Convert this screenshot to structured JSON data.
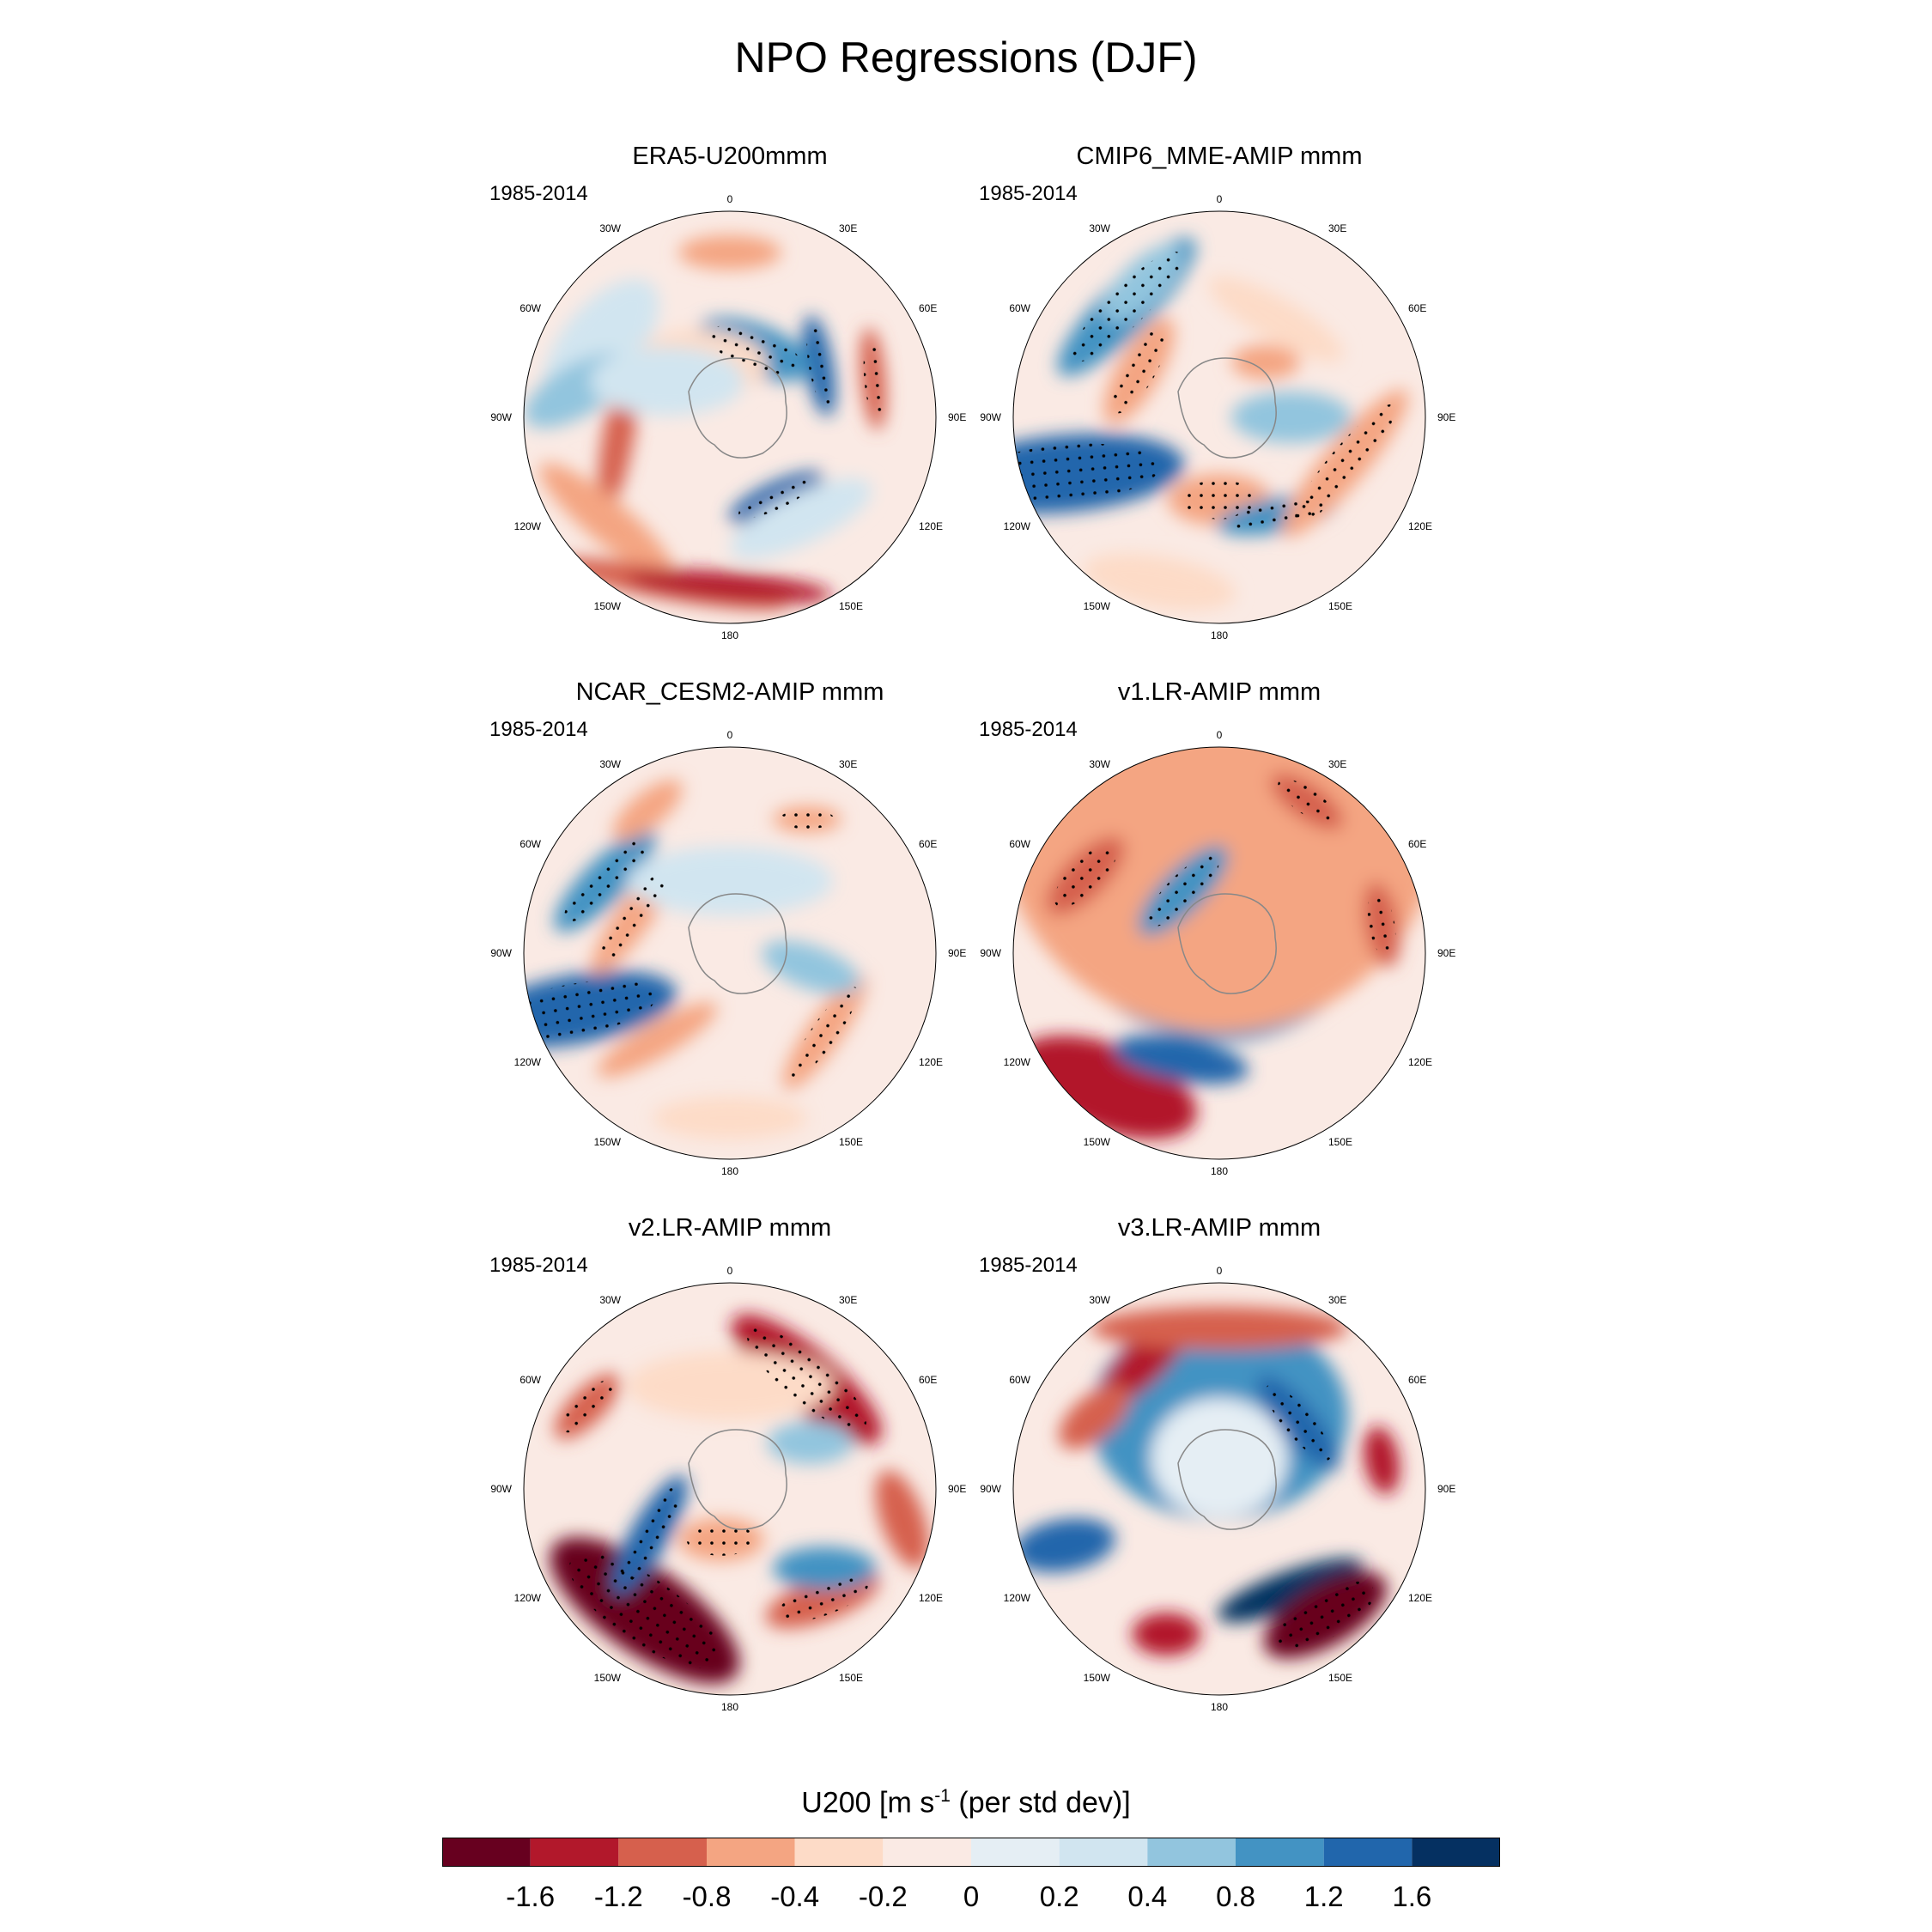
{
  "title": "NPO Regressions (DJF)",
  "panels": [
    {
      "title": "ERA5-U200mmm",
      "period": "1985-2014"
    },
    {
      "title": "CMIP6_MME-AMIP  mmm",
      "period": "1985-2014"
    },
    {
      "title": "NCAR_CESM2-AMIP  mmm",
      "period": "1985-2014"
    },
    {
      "title": "v1.LR-AMIP  mmm",
      "period": "1985-2014"
    },
    {
      "title": "v2.LR-AMIP  mmm",
      "period": "1985-2014"
    },
    {
      "title": "v3.LR-AMIP  mmm",
      "period": "1985-2014"
    }
  ],
  "longitude_labels": [
    "0",
    "30E",
    "60E",
    "90E",
    "120E",
    "150E",
    "180",
    "150W",
    "120W",
    "90W",
    "60W",
    "30W"
  ],
  "colorbar": {
    "title": "U200 [m s",
    "title_sup": "-1",
    "title_tail": " (per std dev)]",
    "tick_labels": [
      "-1.6",
      "-1.2",
      "-0.8",
      "-0.4",
      "-0.2",
      "0",
      "0.2",
      "0.4",
      "0.8",
      "1.2",
      "1.6"
    ],
    "colors": [
      "#67001f",
      "#b2182b",
      "#d6604d",
      "#f4a582",
      "#fddbc7",
      "#faeae4",
      "#e5eef4",
      "#d1e5f0",
      "#92c5de",
      "#4393c3",
      "#2166ac",
      "#053061"
    ]
  },
  "colors": {
    "land_outline": "#888888",
    "stipple": "#000000"
  }
}
